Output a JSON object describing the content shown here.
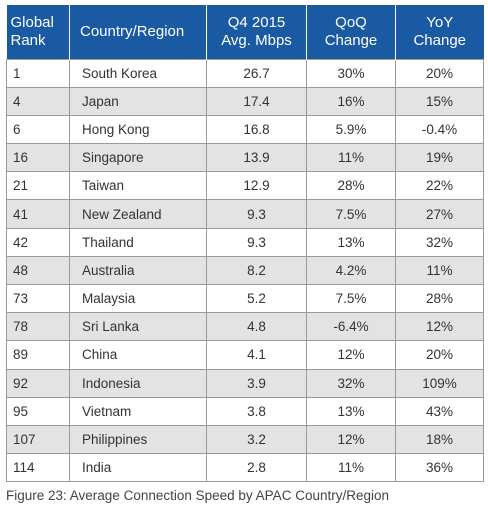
{
  "table": {
    "headers": {
      "rank": [
        "Global",
        "Rank"
      ],
      "country": "Country/Region",
      "speed": [
        "Q4 2015",
        "Avg. Mbps"
      ],
      "qoq": [
        "QoQ",
        "Change"
      ],
      "yoy": [
        "YoY",
        "Change"
      ]
    },
    "header_color": "#1a5aa3",
    "alt_row_color": "#e3e3e3",
    "rows": [
      {
        "rank": "1",
        "country": "South Korea",
        "speed": "26.7",
        "qoq": "30%",
        "yoy": "20%"
      },
      {
        "rank": "4",
        "country": "Japan",
        "speed": "17.4",
        "qoq": "16%",
        "yoy": "15%"
      },
      {
        "rank": "6",
        "country": "Hong Kong",
        "speed": "16.8",
        "qoq": "5.9%",
        "yoy": "-0.4%"
      },
      {
        "rank": "16",
        "country": "Singapore",
        "speed": "13.9",
        "qoq": "11%",
        "yoy": "19%"
      },
      {
        "rank": "21",
        "country": "Taiwan",
        "speed": "12.9",
        "qoq": "28%",
        "yoy": "22%"
      },
      {
        "rank": "41",
        "country": "New Zealand",
        "speed": "9.3",
        "qoq": "7.5%",
        "yoy": "27%"
      },
      {
        "rank": "42",
        "country": "Thailand",
        "speed": "9.3",
        "qoq": "13%",
        "yoy": "32%"
      },
      {
        "rank": "48",
        "country": "Australia",
        "speed": "8.2",
        "qoq": "4.2%",
        "yoy": "11%"
      },
      {
        "rank": "73",
        "country": "Malaysia",
        "speed": "5.2",
        "qoq": "7.5%",
        "yoy": "28%"
      },
      {
        "rank": "78",
        "country": "Sri Lanka",
        "speed": "4.8",
        "qoq": "-6.4%",
        "yoy": "12%"
      },
      {
        "rank": "89",
        "country": "China",
        "speed": "4.1",
        "qoq": "12%",
        "yoy": "20%"
      },
      {
        "rank": "92",
        "country": "Indonesia",
        "speed": "3.9",
        "qoq": "32%",
        "yoy": "109%"
      },
      {
        "rank": "95",
        "country": "Vietnam",
        "speed": "3.8",
        "qoq": "13%",
        "yoy": "43%"
      },
      {
        "rank": "107",
        "country": "Philippines",
        "speed": "3.2",
        "qoq": "12%",
        "yoy": "18%"
      },
      {
        "rank": "114",
        "country": "India",
        "speed": "2.8",
        "qoq": "11%",
        "yoy": "36%"
      }
    ]
  },
  "caption": "Figure 23: Average Connection Speed by APAC Country/Region"
}
